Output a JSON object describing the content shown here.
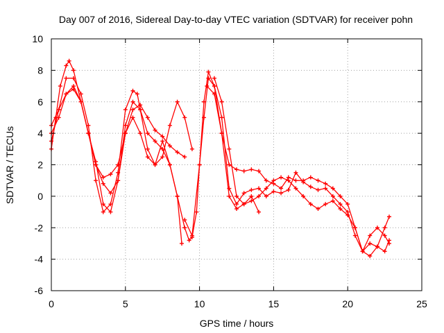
{
  "chart_data": {
    "type": "scatter",
    "title": "Day 007 of 2016, Sidereal Day-to-day VTEC variation (SDTVAR) for receiver pohn",
    "xlabel": "GPS time / hours",
    "ylabel": "SDTVAR / TECUs",
    "xlim": [
      0,
      25
    ],
    "ylim": [
      -6,
      10
    ],
    "xticks": [
      0,
      5,
      10,
      15,
      20,
      25
    ],
    "yticks": [
      -6,
      -4,
      -2,
      0,
      2,
      4,
      6,
      8,
      10
    ],
    "grid": true,
    "marker": "+",
    "color": "#ff0000",
    "series": [
      {
        "x": [
          0.0,
          0.3,
          0.6,
          1.0,
          1.2,
          1.5,
          2.0,
          2.5,
          3.0,
          3.5,
          4.0,
          4.5,
          5.0,
          5.5,
          6.0,
          6.5,
          7.0,
          7.5,
          8.0,
          8.5,
          9.0
        ],
        "y": [
          3.0,
          5.0,
          7.0,
          8.3,
          8.6,
          8.0,
          6.0,
          4.0,
          2.0,
          1.2,
          1.4,
          2.0,
          4.0,
          5.5,
          5.8,
          5.0,
          4.2,
          3.8,
          3.2,
          2.8,
          2.5
        ]
      },
      {
        "x": [
          0.0,
          0.5,
          1.0,
          1.5,
          2.0,
          2.5,
          3.0,
          3.5,
          4.0,
          4.5,
          5.0,
          5.5,
          5.8,
          6.0,
          6.5,
          7.0,
          7.5,
          8.0,
          8.5,
          8.8
        ],
        "y": [
          3.5,
          5.5,
          7.5,
          7.5,
          6.5,
          4.5,
          1.0,
          -1.0,
          -0.5,
          1.5,
          5.5,
          6.7,
          6.5,
          5.5,
          4.0,
          3.5,
          3.0,
          2.0,
          0.0,
          -3.0
        ]
      },
      {
        "x": [
          0.0,
          0.5,
          1.0,
          1.5,
          2.0,
          2.5,
          3.0,
          3.5,
          4.0,
          4.5,
          5.0,
          5.5,
          6.0,
          6.5,
          7.0,
          7.5,
          8.0,
          8.5,
          9.0,
          9.5
        ],
        "y": [
          4.0,
          5.0,
          6.5,
          6.8,
          6.0,
          4.0,
          2.0,
          0.8,
          0.2,
          1.0,
          4.0,
          5.0,
          4.0,
          2.5,
          2.0,
          2.5,
          4.5,
          6.0,
          5.0,
          3.0
        ]
      },
      {
        "x": [
          0.0,
          0.5,
          1.0,
          1.5,
          2.0,
          2.5,
          3.0,
          3.5,
          4.0,
          4.5,
          5.0,
          5.5,
          6.0,
          6.5,
          7.0,
          7.5,
          8.0,
          8.5,
          9.0,
          9.3,
          9.5,
          9.8,
          10.0,
          10.3,
          10.6,
          11.0,
          11.5,
          12.0,
          12.5,
          13.0,
          13.5,
          14.0
        ],
        "y": [
          4.5,
          5.5,
          6.5,
          7.0,
          6.0,
          4.0,
          2.2,
          -0.5,
          -1.0,
          1.0,
          4.5,
          6.0,
          5.5,
          3.0,
          2.0,
          3.5,
          2.0,
          0.0,
          -2.0,
          -2.8,
          -2.6,
          -1.0,
          2.0,
          5.0,
          7.5,
          7.0,
          4.0,
          0.0,
          -0.8,
          -0.5,
          0.0,
          -1.0
        ]
      },
      {
        "x": [
          9.0,
          9.5,
          10.0,
          10.3,
          10.6,
          11.0,
          11.5,
          12.0,
          12.5,
          13.0,
          13.5,
          14.0,
          14.5,
          15.0,
          15.5,
          16.0,
          16.5,
          17.0,
          17.5,
          18.0,
          18.5,
          19.0,
          19.5,
          20.0,
          20.5,
          21.0,
          21.5,
          22.0,
          22.5,
          22.8
        ],
        "y": [
          -1.5,
          -2.5,
          2.0,
          6.0,
          7.9,
          7.0,
          5.0,
          0.5,
          -0.5,
          0.2,
          0.4,
          0.5,
          0.0,
          0.3,
          0.2,
          0.4,
          1.5,
          0.9,
          0.6,
          0.4,
          0.5,
          0.0,
          -0.5,
          -1.0,
          -2.5,
          -3.5,
          -3.8,
          -3.2,
          -2.0,
          -1.3
        ]
      },
      {
        "x": [
          10.5,
          11.0,
          11.5,
          12.0,
          12.5,
          13.0,
          13.5,
          14.0,
          14.5,
          15.0,
          15.5,
          16.0,
          16.5,
          17.0,
          17.5,
          18.0,
          18.5,
          19.0,
          19.5,
          20.0,
          20.5,
          21.0,
          21.5,
          22.0,
          22.5,
          22.8
        ],
        "y": [
          7.0,
          6.5,
          4.0,
          2.0,
          1.7,
          1.6,
          1.7,
          1.6,
          1.0,
          0.8,
          0.5,
          1.2,
          1.0,
          1.0,
          1.2,
          1.0,
          0.8,
          0.5,
          0.0,
          -0.5,
          -2.0,
          -3.5,
          -2.5,
          -2.0,
          -2.5,
          -3.0
        ]
      },
      {
        "x": [
          11.0,
          11.5,
          12.0,
          12.5,
          13.0,
          13.5,
          14.0,
          14.5,
          15.0,
          15.5,
          16.0,
          16.5,
          17.0,
          17.5,
          18.0,
          18.5,
          19.0,
          19.5,
          20.0,
          20.5,
          21.0,
          21.5,
          22.0,
          22.5,
          22.8
        ],
        "y": [
          7.5,
          6.0,
          3.0,
          0.0,
          -0.5,
          -0.3,
          0.0,
          0.5,
          1.0,
          1.2,
          1.0,
          0.5,
          0.0,
          -0.5,
          -0.8,
          -0.5,
          -0.3,
          -0.8,
          -1.2,
          -2.0,
          -3.5,
          -3.0,
          -3.2,
          -3.5,
          -2.8
        ]
      }
    ]
  }
}
